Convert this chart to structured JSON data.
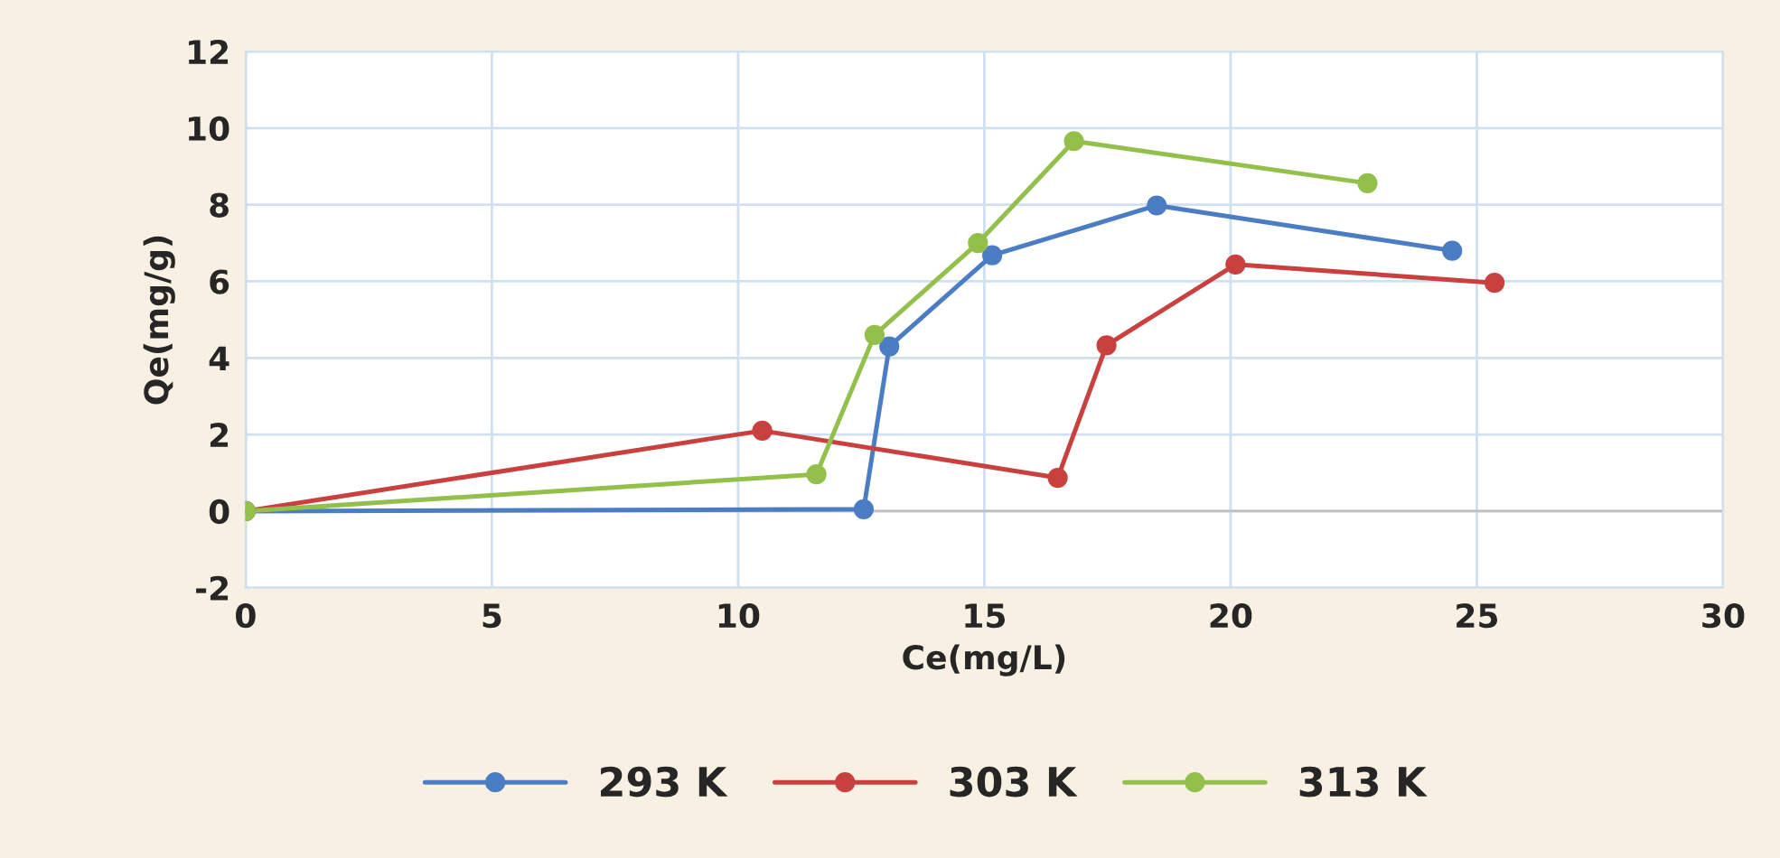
{
  "chart_data": {
    "type": "line",
    "xlabel": "Ce(mg/L)",
    "ylabel": "Qe(mg/g)",
    "xlim": [
      0,
      30
    ],
    "ylim": [
      -2,
      12
    ],
    "xticks": [
      0,
      5,
      10,
      15,
      20,
      25,
      30
    ],
    "yticks": [
      -2,
      0,
      2,
      4,
      6,
      8,
      10,
      12
    ],
    "grid": true,
    "legend": "bottom",
    "marker": "circle",
    "line_style": "solid",
    "series": [
      {
        "name": "293 K",
        "color": "#4a7dc4",
        "x": [
          0,
          12.55,
          13.07,
          15.16,
          18.5,
          24.5
        ],
        "values": [
          0,
          0.05,
          4.3,
          6.68,
          7.98,
          6.8
        ]
      },
      {
        "name": "303 K",
        "color": "#c9413f",
        "x": [
          0,
          10.49,
          16.49,
          17.48,
          20.1,
          25.36
        ],
        "values": [
          0,
          2.1,
          0.87,
          4.33,
          6.44,
          5.96
        ]
      },
      {
        "name": "313 K",
        "color": "#93bf4b",
        "x": [
          0,
          11.59,
          12.77,
          14.87,
          16.82,
          22.78
        ],
        "values": [
          0,
          0.96,
          4.6,
          7.0,
          9.66,
          8.56
        ]
      }
    ]
  }
}
